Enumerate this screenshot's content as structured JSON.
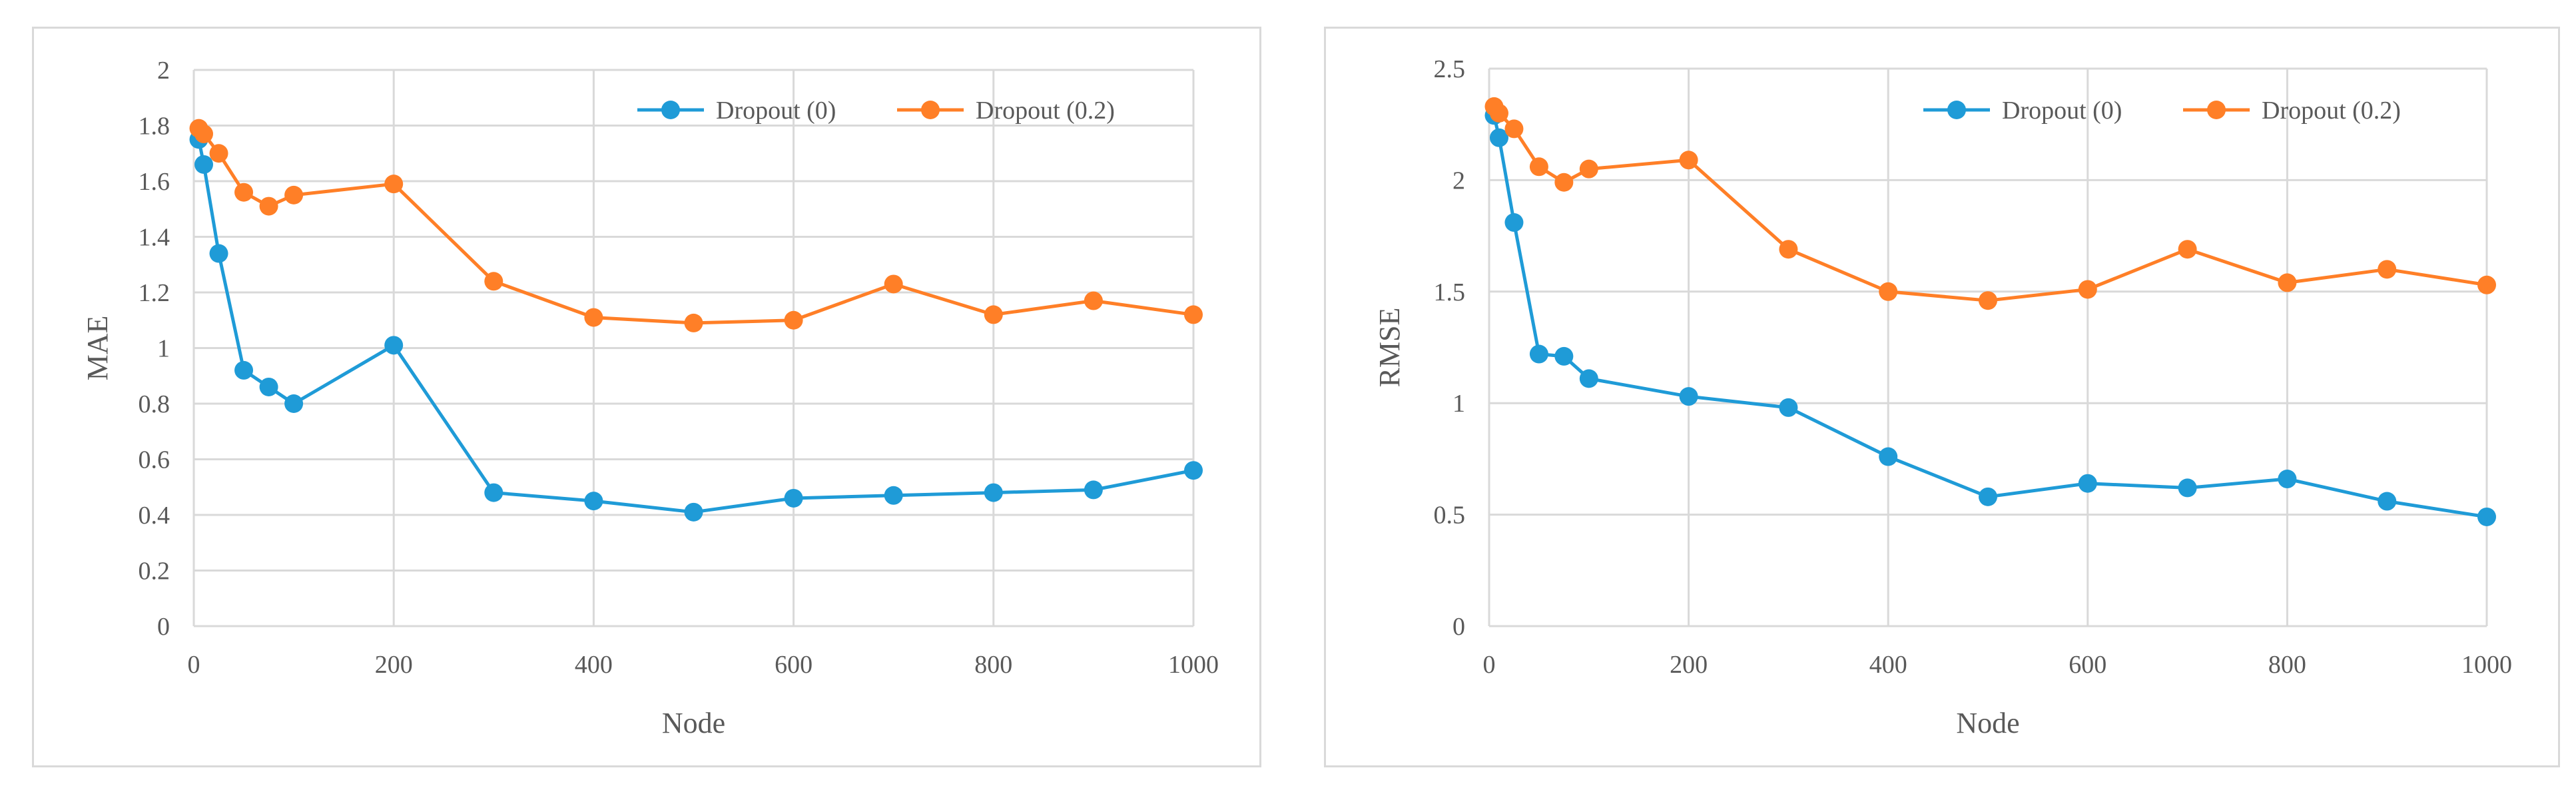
{
  "chart_data": [
    {
      "type": "line",
      "title": "",
      "xlabel": "Node",
      "ylabel": "MAE",
      "xlim": [
        0,
        1000
      ],
      "ylim": [
        0,
        2
      ],
      "x_ticks": [
        0,
        200,
        400,
        600,
        800,
        1000
      ],
      "y_ticks": [
        0,
        0.2,
        0.4,
        0.6,
        0.8,
        1,
        1.2,
        1.4,
        1.6,
        1.8,
        2
      ],
      "x_tick_labels": [
        "0",
        "200",
        "400",
        "600",
        "800",
        "1000"
      ],
      "y_tick_labels": [
        "0",
        "0.2",
        "0.4",
        "0.6",
        "0.8",
        "1",
        "1.2",
        "1.4",
        "1.6",
        "1.8",
        "2"
      ],
      "grid": true,
      "legend_position": "top-right",
      "x": [
        5,
        10,
        25,
        50,
        75,
        100,
        200,
        300,
        400,
        500,
        600,
        700,
        800,
        900,
        1000
      ],
      "series": [
        {
          "name": "Dropout (0)",
          "color": "#1f9bd7",
          "values": [
            1.75,
            1.66,
            1.34,
            0.92,
            0.86,
            0.8,
            1.01,
            0.48,
            0.45,
            0.41,
            0.46,
            0.47,
            0.48,
            0.49,
            0.56
          ]
        },
        {
          "name": "Dropout (0.2)",
          "color": "#ff7f27",
          "values": [
            1.79,
            1.77,
            1.7,
            1.56,
            1.51,
            1.55,
            1.59,
            1.24,
            1.11,
            1.09,
            1.1,
            1.23,
            1.12,
            1.17,
            1.12
          ]
        }
      ]
    },
    {
      "type": "line",
      "title": "",
      "xlabel": "Node",
      "ylabel": "RMSE",
      "xlim": [
        0,
        1000
      ],
      "ylim": [
        0,
        2.5
      ],
      "x_ticks": [
        0,
        200,
        400,
        600,
        800,
        1000
      ],
      "y_ticks": [
        0,
        0.5,
        1,
        1.5,
        2,
        2.5
      ],
      "x_tick_labels": [
        "0",
        "200",
        "400",
        "600",
        "800",
        "1000"
      ],
      "y_tick_labels": [
        "0",
        "0.5",
        "1",
        "1.5",
        "2",
        "2.5"
      ],
      "grid": true,
      "legend_position": "top-right",
      "x": [
        5,
        10,
        25,
        50,
        75,
        100,
        200,
        300,
        400,
        500,
        600,
        700,
        800,
        900,
        1000
      ],
      "series": [
        {
          "name": "Dropout (0)",
          "color": "#1f9bd7",
          "values": [
            2.29,
            2.19,
            1.81,
            1.22,
            1.21,
            1.11,
            1.03,
            0.98,
            0.76,
            0.58,
            0.64,
            0.62,
            0.66,
            0.56,
            0.49
          ]
        },
        {
          "name": "Dropout (0.2)",
          "color": "#ff7f27",
          "values": [
            2.33,
            2.3,
            2.23,
            2.06,
            1.99,
            2.05,
            2.09,
            1.69,
            1.5,
            1.46,
            1.51,
            1.69,
            1.54,
            1.6,
            1.53
          ]
        }
      ]
    }
  ]
}
